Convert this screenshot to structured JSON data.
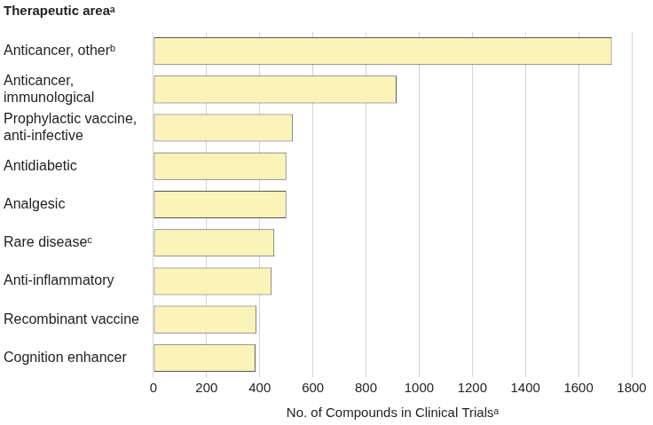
{
  "chart_data": {
    "type": "bar",
    "orientation": "horizontal",
    "title": "Therapeutic areaᵃ",
    "x_label": "No. of Compounds in Clinical Trialsᵃ",
    "categories": [
      "Anticancer, otherᵇ",
      "Anticancer, immunological",
      "Prophylactic vaccine, anti-infective",
      "Antidiabetic",
      "Analgesic",
      "Rare diseaseᶜ",
      "Anti-inflammatory",
      "Recombinant vaccine",
      "Cognition enhancer"
    ],
    "values": [
      1725,
      915,
      525,
      500,
      500,
      455,
      445,
      388,
      384
    ],
    "color": "#fbf4b9",
    "xlim": [
      0,
      1800
    ],
    "xticks": [
      0,
      200,
      400,
      600,
      800,
      1000,
      1200,
      1400,
      1600,
      1800
    ],
    "grid": true
  }
}
